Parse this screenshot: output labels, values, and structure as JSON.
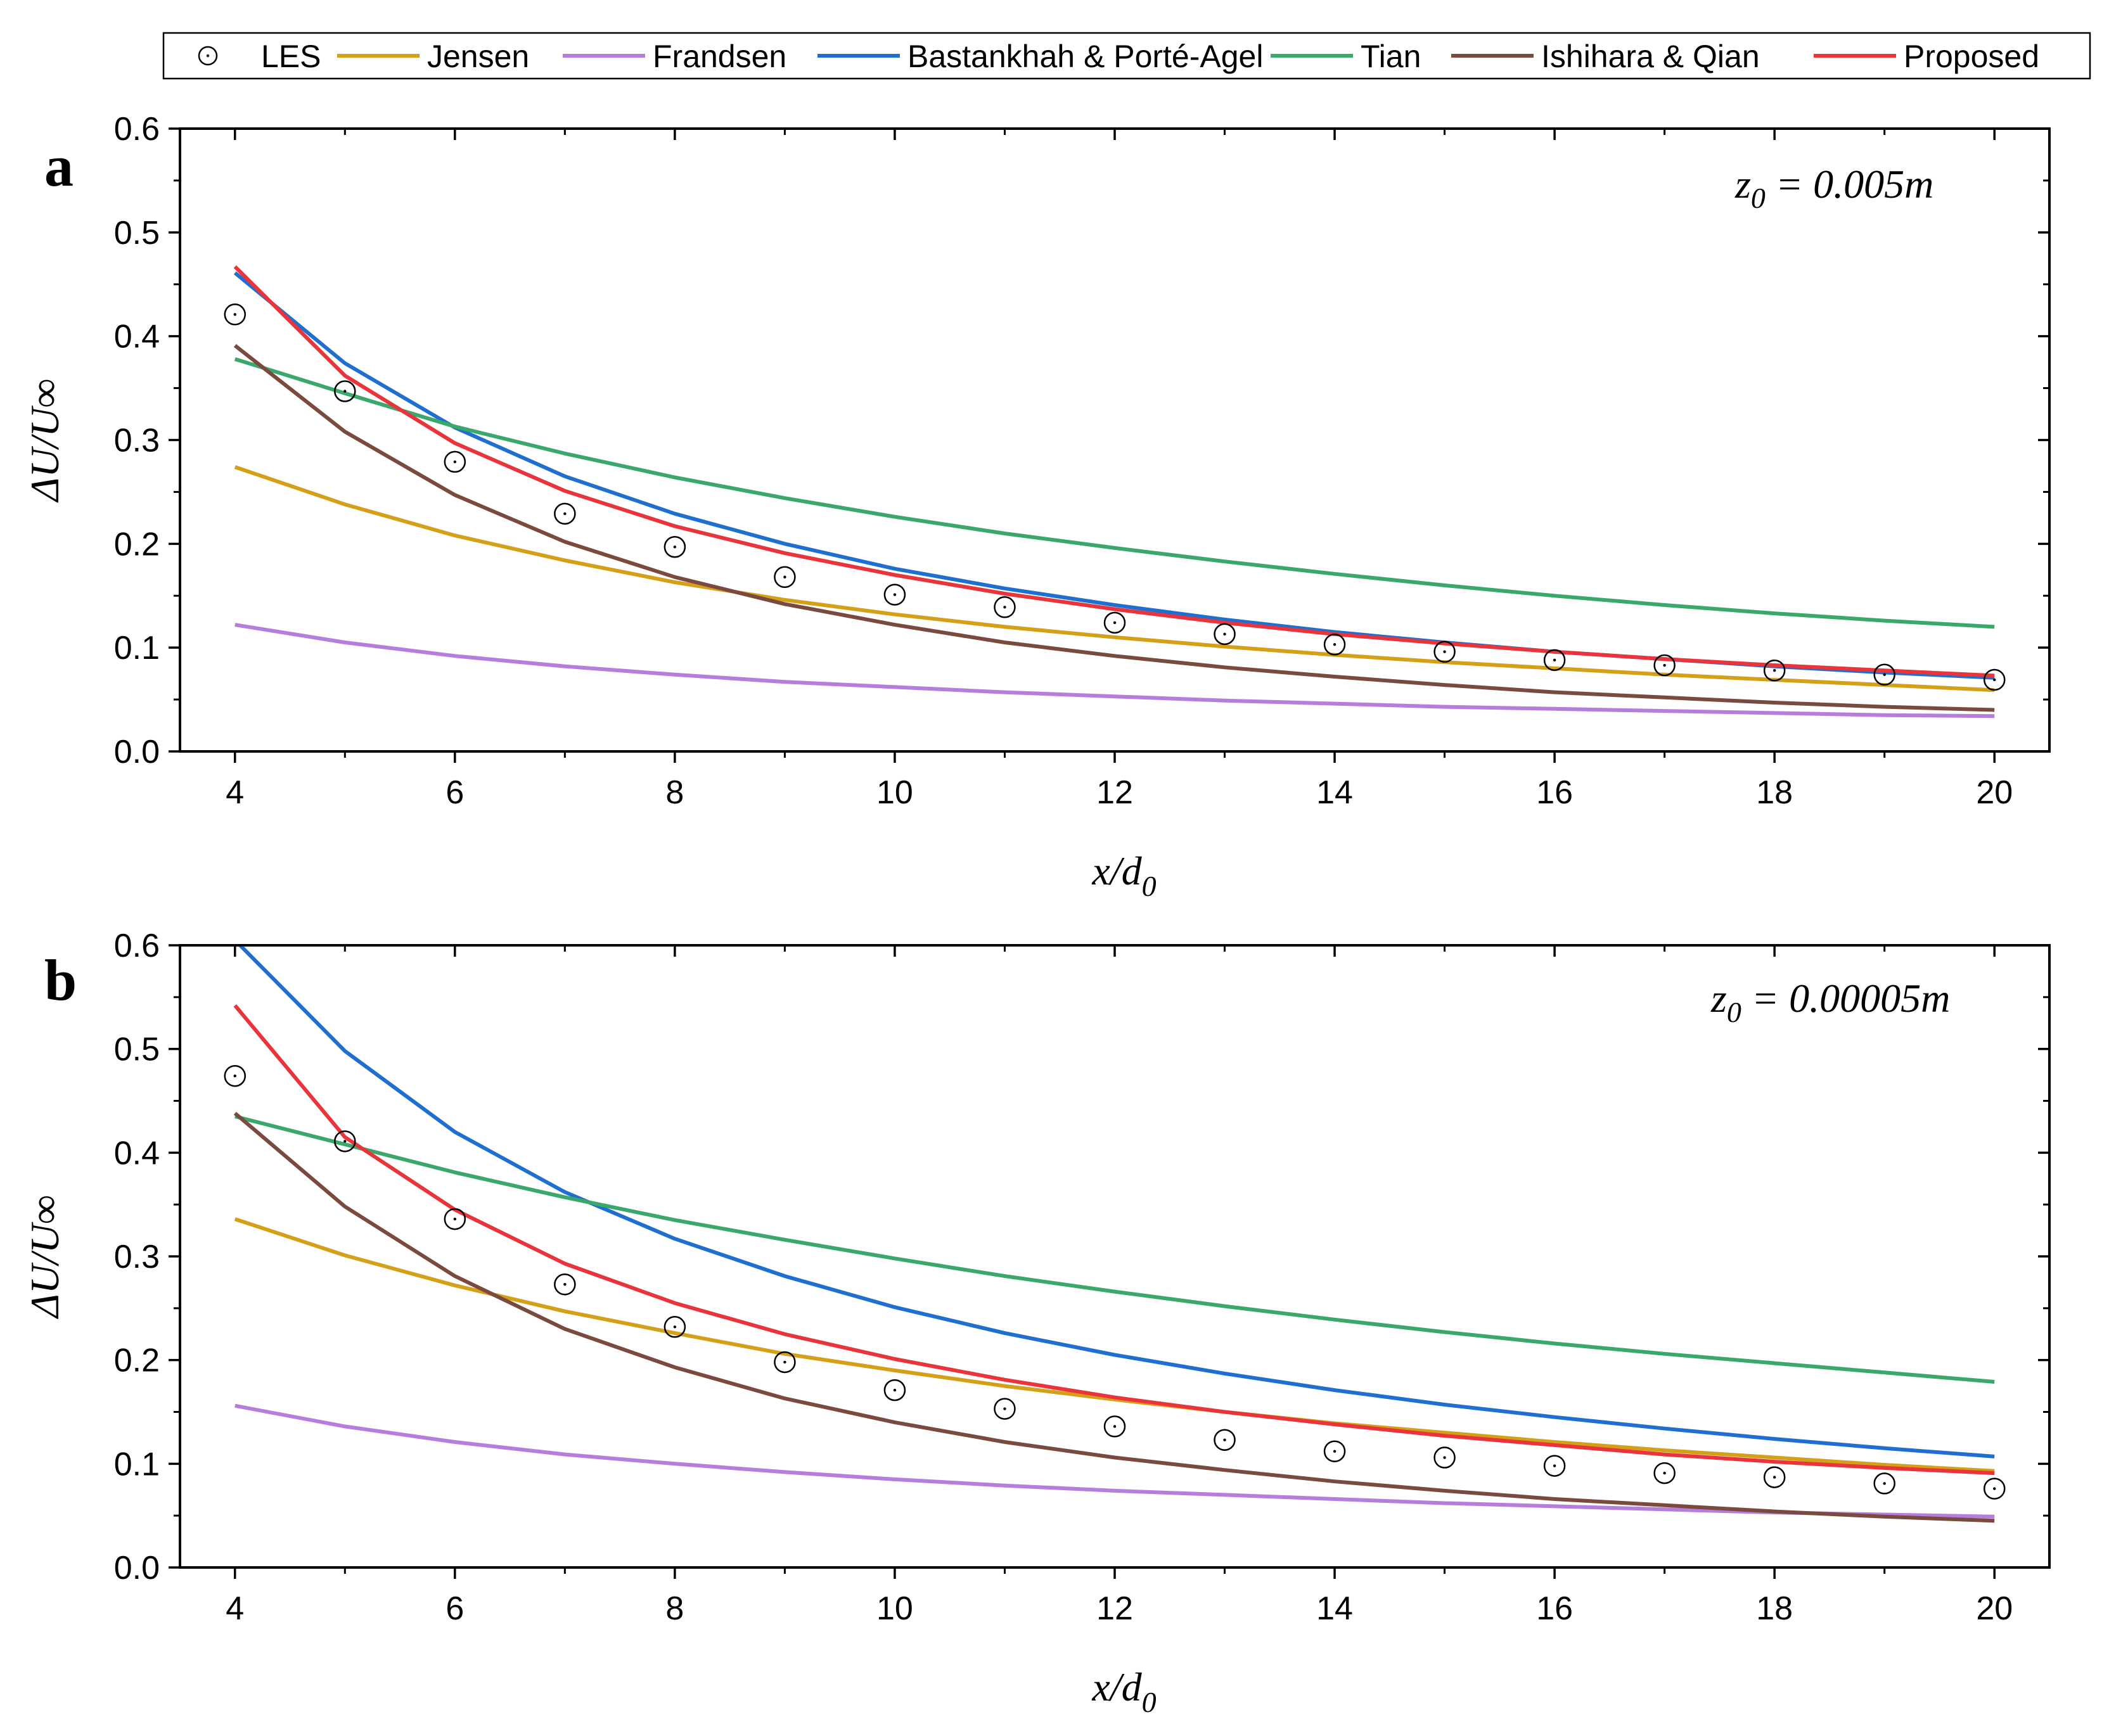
{
  "chart_data": {
    "type": "line",
    "legend": {
      "placement": "top",
      "entries": [
        "LES",
        "Jensen",
        "Frandsen",
        "Bastankhah & Porté-Agel",
        "Tian",
        "Ishihara & Qian",
        "Proposed"
      ]
    },
    "colors": {
      "LES": "#000000",
      "Jensen": "#d4a017",
      "Frandsen": "#b57edc",
      "Bastankhah & Porté-Agel": "#1f6fd1",
      "Tian": "#3aa86b",
      "Ishihara & Qian": "#7a4a3f",
      "Proposed": "#e8343a"
    },
    "panels": [
      {
        "label": "a",
        "annotation": "z0 = 0.005m",
        "annotation_main": "z",
        "annotation_sub": "0",
        "annotation_rest": " = 0.005m",
        "xlabel": "x/d0",
        "xlabel_main": "x/d",
        "xlabel_sub": "0",
        "ylabel": "ΔU/U∞",
        "xlim": [
          3.5,
          20.5
        ],
        "ylim": [
          0.0,
          0.6
        ],
        "xticks": [
          4,
          6,
          8,
          10,
          12,
          14,
          16,
          18,
          20
        ],
        "yticks": [
          0.0,
          0.1,
          0.2,
          0.3,
          0.4,
          0.5,
          0.6
        ],
        "ytick_labels": [
          "0.0",
          "0.1",
          "0.2",
          "0.3",
          "0.4",
          "0.5",
          "0.6"
        ],
        "grid": false,
        "series": [
          {
            "name": "LES",
            "style": "markers",
            "x": [
              4,
              5,
              6,
              7,
              8,
              9,
              10,
              11,
              12,
              13,
              14,
              15,
              16,
              17,
              18,
              19,
              20
            ],
            "y": [
              0.421,
              0.347,
              0.279,
              0.229,
              0.197,
              0.168,
              0.151,
              0.139,
              0.124,
              0.113,
              0.103,
              0.096,
              0.088,
              0.083,
              0.078,
              0.074,
              0.069
            ]
          },
          {
            "name": "Jensen",
            "style": "line",
            "x": [
              4,
              5,
              6,
              7,
              8,
              9,
              10,
              11,
              12,
              13,
              14,
              15,
              16,
              17,
              18,
              19,
              20
            ],
            "y": [
              0.274,
              0.238,
              0.208,
              0.184,
              0.163,
              0.146,
              0.132,
              0.12,
              0.11,
              0.101,
              0.093,
              0.086,
              0.08,
              0.074,
              0.069,
              0.064,
              0.059
            ]
          },
          {
            "name": "Frandsen",
            "style": "line",
            "x": [
              4,
              5,
              6,
              7,
              8,
              9,
              10,
              11,
              12,
              13,
              14,
              15,
              16,
              17,
              18,
              19,
              20
            ],
            "y": [
              0.122,
              0.105,
              0.092,
              0.082,
              0.074,
              0.067,
              0.062,
              0.057,
              0.053,
              0.049,
              0.046,
              0.043,
              0.041,
              0.039,
              0.037,
              0.035,
              0.034
            ]
          },
          {
            "name": "Bastankhah & Porté-Agel",
            "style": "line",
            "x": [
              4,
              5,
              6,
              7,
              8,
              9,
              10,
              11,
              12,
              13,
              14,
              15,
              16,
              17,
              18,
              19,
              20
            ],
            "y": [
              0.461,
              0.374,
              0.312,
              0.265,
              0.229,
              0.2,
              0.176,
              0.157,
              0.141,
              0.127,
              0.115,
              0.105,
              0.096,
              0.089,
              0.082,
              0.076,
              0.071
            ]
          },
          {
            "name": "Tian",
            "style": "line",
            "x": [
              4,
              5,
              6,
              7,
              8,
              9,
              10,
              11,
              12,
              13,
              14,
              15,
              16,
              17,
              18,
              19,
              20
            ],
            "y": [
              0.378,
              0.345,
              0.313,
              0.287,
              0.264,
              0.244,
              0.226,
              0.21,
              0.196,
              0.183,
              0.171,
              0.16,
              0.15,
              0.141,
              0.133,
              0.126,
              0.12
            ]
          },
          {
            "name": "Ishihara & Qian",
            "style": "line",
            "x": [
              4,
              5,
              6,
              7,
              8,
              9,
              10,
              11,
              12,
              13,
              14,
              15,
              16,
              17,
              18,
              19,
              20
            ],
            "y": [
              0.391,
              0.308,
              0.247,
              0.202,
              0.168,
              0.142,
              0.122,
              0.105,
              0.092,
              0.081,
              0.072,
              0.064,
              0.057,
              0.052,
              0.047,
              0.043,
              0.04
            ]
          },
          {
            "name": "Proposed",
            "style": "line",
            "x": [
              4,
              5,
              6,
              7,
              8,
              9,
              10,
              11,
              12,
              13,
              14,
              15,
              16,
              17,
              18,
              19,
              20
            ],
            "y": [
              0.467,
              0.362,
              0.297,
              0.251,
              0.217,
              0.191,
              0.17,
              0.152,
              0.137,
              0.124,
              0.113,
              0.104,
              0.096,
              0.089,
              0.083,
              0.078,
              0.073
            ]
          }
        ]
      },
      {
        "label": "b",
        "annotation": "z0 = 0.00005m",
        "annotation_main": "z",
        "annotation_sub": "0",
        "annotation_rest": " = 0.00005m",
        "xlabel": "x/d0",
        "xlabel_main": "x/d",
        "xlabel_sub": "0",
        "ylabel": "ΔU/U∞",
        "xlim": [
          3.5,
          20.5
        ],
        "ylim": [
          0.0,
          0.6
        ],
        "xticks": [
          4,
          6,
          8,
          10,
          12,
          14,
          16,
          18,
          20
        ],
        "yticks": [
          0.0,
          0.1,
          0.2,
          0.3,
          0.4,
          0.5,
          0.6
        ],
        "ytick_labels": [
          "0.0",
          "0.1",
          "0.2",
          "0.3",
          "0.4",
          "0.5",
          "0.6"
        ],
        "grid": false,
        "series": [
          {
            "name": "LES",
            "style": "markers",
            "x": [
              4,
              5,
              6,
              7,
              8,
              9,
              10,
              11,
              12,
              13,
              14,
              15,
              16,
              17,
              18,
              19,
              20
            ],
            "y": [
              0.474,
              0.411,
              0.336,
              0.273,
              0.232,
              0.198,
              0.171,
              0.153,
              0.136,
              0.123,
              0.112,
              0.106,
              0.098,
              0.091,
              0.087,
              0.081,
              0.076
            ]
          },
          {
            "name": "Jensen",
            "style": "line",
            "x": [
              4,
              5,
              6,
              7,
              8,
              9,
              10,
              11,
              12,
              13,
              14,
              15,
              16,
              17,
              18,
              19,
              20
            ],
            "y": [
              0.336,
              0.301,
              0.272,
              0.247,
              0.226,
              0.206,
              0.19,
              0.175,
              0.162,
              0.15,
              0.139,
              0.13,
              0.121,
              0.113,
              0.106,
              0.099,
              0.093
            ]
          },
          {
            "name": "Frandsen",
            "style": "line",
            "x": [
              4,
              5,
              6,
              7,
              8,
              9,
              10,
              11,
              12,
              13,
              14,
              15,
              16,
              17,
              18,
              19,
              20
            ],
            "y": [
              0.156,
              0.136,
              0.121,
              0.109,
              0.1,
              0.092,
              0.085,
              0.079,
              0.074,
              0.07,
              0.066,
              0.062,
              0.059,
              0.056,
              0.053,
              0.051,
              0.049
            ]
          },
          {
            "name": "Bastankhah & Porté-Agel",
            "style": "line",
            "x": [
              4,
              5,
              6,
              7,
              8,
              9,
              10,
              11,
              12,
              13,
              14,
              15,
              16,
              17,
              18,
              19,
              20
            ],
            "y": [
              0.605,
              0.498,
              0.42,
              0.362,
              0.317,
              0.281,
              0.251,
              0.226,
              0.205,
              0.187,
              0.171,
              0.157,
              0.145,
              0.134,
              0.124,
              0.115,
              0.107
            ]
          },
          {
            "name": "Tian",
            "style": "line",
            "x": [
              4,
              5,
              6,
              7,
              8,
              9,
              10,
              11,
              12,
              13,
              14,
              15,
              16,
              17,
              18,
              19,
              20
            ],
            "y": [
              0.435,
              0.408,
              0.381,
              0.357,
              0.335,
              0.316,
              0.298,
              0.281,
              0.266,
              0.252,
              0.239,
              0.227,
              0.216,
              0.206,
              0.197,
              0.188,
              0.179
            ]
          },
          {
            "name": "Ishihara & Qian",
            "style": "line",
            "x": [
              4,
              5,
              6,
              7,
              8,
              9,
              10,
              11,
              12,
              13,
              14,
              15,
              16,
              17,
              18,
              19,
              20
            ],
            "y": [
              0.438,
              0.348,
              0.281,
              0.23,
              0.193,
              0.163,
              0.14,
              0.121,
              0.106,
              0.094,
              0.083,
              0.074,
              0.066,
              0.06,
              0.054,
              0.049,
              0.045
            ]
          },
          {
            "name": "Proposed",
            "style": "line",
            "x": [
              4,
              5,
              6,
              7,
              8,
              9,
              10,
              11,
              12,
              13,
              14,
              15,
              16,
              17,
              18,
              19,
              20
            ],
            "y": [
              0.542,
              0.415,
              0.345,
              0.293,
              0.255,
              0.225,
              0.201,
              0.181,
              0.164,
              0.15,
              0.138,
              0.127,
              0.118,
              0.109,
              0.102,
              0.096,
              0.091
            ]
          }
        ]
      }
    ]
  }
}
